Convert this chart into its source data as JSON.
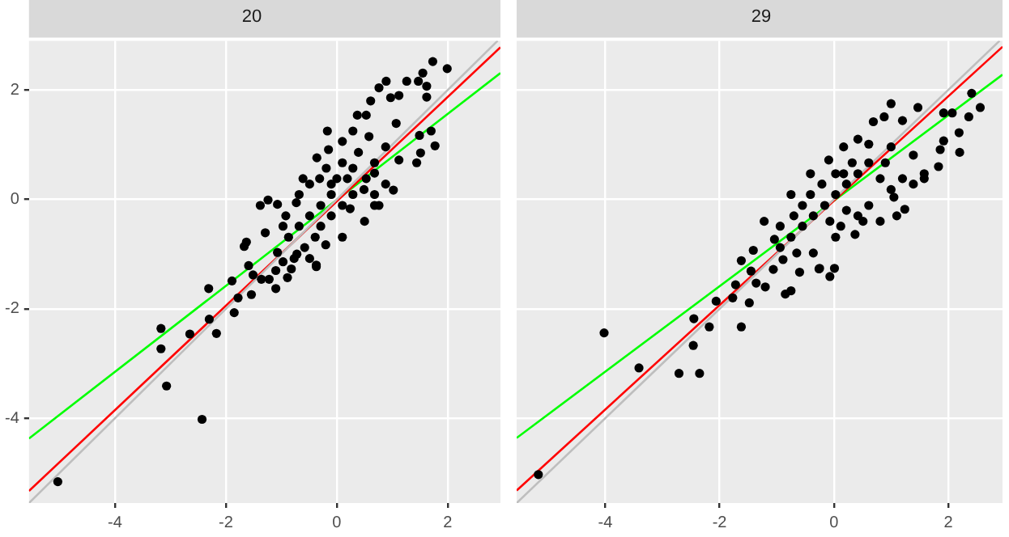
{
  "chart_data": [
    {
      "type": "scatter",
      "title": "20",
      "xlim": [
        -5.55,
        2.95
      ],
      "ylim": [
        -5.55,
        2.9
      ],
      "xticks": [
        -4,
        -2,
        0,
        2
      ],
      "yticks": [
        -4,
        -2,
        0,
        2
      ],
      "grid": true,
      "series": [
        {
          "color": "#000000",
          "marker": "circle",
          "x": [
            -5.03,
            -3.17,
            -3.17,
            -3.07,
            -2.65,
            -2.43,
            -2.31,
            -2.3,
            -2.17,
            -1.89,
            -1.85,
            -1.78,
            -1.59,
            -1.54,
            -1.51,
            -1.36,
            -1.22,
            -1.1,
            -1.1,
            -0.97,
            -0.89,
            -0.37,
            -0.72,
            -1.67,
            -1.63,
            -1.38,
            -1.24,
            -1.07,
            -1.29,
            -0.92,
            -0.73,
            -0.61,
            -0.37,
            -0.36,
            -0.31,
            -0.17,
            -0.15,
            0.29,
            0.37,
            0.53,
            0.61,
            0.76,
            0.89,
            1.12,
            0.97,
            1.26,
            1.55,
            1.62,
            1.62,
            1.73,
            1.99,
            1.47,
            1.49,
            1.7,
            1.77,
            1.44,
            1.51,
            1.02,
            0.76,
            0.5,
            0.24,
            0.1,
            -0.2,
            1.07,
            1.12,
            0.88,
            0.68,
            0.68,
            0.53,
            0.29,
            0.1,
            0.0,
            -0.1,
            -0.29,
            -0.49,
            -0.68,
            -0.87,
            -0.58,
            -0.77,
            -0.49,
            -0.29,
            -0.1,
            0.1,
            0.29,
            0.49,
            0.68,
            0.88,
            0.39,
            0.58,
            0.1,
            0.19,
            -0.19,
            -0.49,
            -0.68,
            -0.97,
            -1.07,
            -0.82,
            0.68,
            -0.1,
            -0.39
          ],
          "values": [
            -5.16,
            -2.36,
            -2.73,
            -3.41,
            -2.46,
            -4.02,
            -1.63,
            -2.19,
            -2.45,
            -1.49,
            -2.07,
            -1.8,
            -1.21,
            -1.74,
            -1.38,
            -1.46,
            -1.46,
            -1.3,
            -1.63,
            -1.14,
            -1.43,
            -1.23,
            -1.0,
            -0.86,
            -0.78,
            -0.11,
            -0.01,
            -0.09,
            -0.61,
            -0.3,
            -0.06,
            0.38,
            -1.2,
            0.76,
            0.38,
            1.25,
            0.91,
            1.25,
            1.54,
            1.54,
            1.8,
            2.04,
            2.16,
            1.9,
            1.86,
            2.16,
            2.31,
            2.07,
            1.87,
            2.52,
            2.39,
            2.16,
            1.17,
            1.25,
            0.98,
            0.67,
            0.85,
            0.17,
            -0.11,
            -0.4,
            -0.17,
            -0.69,
            -0.83,
            1.39,
            0.72,
            0.96,
            0.67,
            0.48,
            0.38,
            0.57,
            0.67,
            0.38,
            0.09,
            -0.11,
            -0.3,
            -0.49,
            -0.69,
            -0.88,
            -1.08,
            -1.08,
            -0.49,
            -0.3,
            -0.11,
            0.09,
            0.18,
            0.09,
            0.28,
            0.86,
            1.15,
            1.06,
            0.38,
            0.57,
            0.28,
            0.09,
            -0.49,
            -0.97,
            -1.27,
            -0.11,
            0.28,
            -0.69
          ]
        },
        {
          "type": "line",
          "color": "#bebebe",
          "x": [
            -5.55,
            2.9
          ],
          "values": [
            -5.55,
            2.9
          ]
        },
        {
          "type": "line",
          "color": "#ff0000",
          "x": [
            -5.55,
            2.95
          ],
          "values": [
            -5.33,
            2.78
          ]
        },
        {
          "type": "line",
          "color": "#00ff00",
          "x": [
            -5.55,
            2.95
          ],
          "values": [
            -4.37,
            2.31
          ]
        }
      ]
    },
    {
      "type": "scatter",
      "title": "29",
      "xlim": [
        -5.55,
        2.95
      ],
      "ylim": [
        -5.55,
        2.9
      ],
      "xticks": [
        -4,
        -2,
        0,
        2
      ],
      "yticks": [
        -4,
        -2,
        0,
        2
      ],
      "tick_labels": "x",
      "grid": true,
      "series": [
        {
          "color": "#000000",
          "marker": "circle",
          "x": [
            -5.17,
            -4.02,
            -3.41,
            -2.71,
            -2.35,
            -2.46,
            -2.45,
            -2.18,
            -2.06,
            -1.77,
            -1.72,
            -1.62,
            -1.48,
            -1.36,
            -1.2,
            -1.45,
            -1.06,
            -0.85,
            -0.75,
            -0.6,
            -0.25,
            -0.07,
            0.01,
            -1.62,
            -0.89,
            -1.41,
            -1.22,
            -1.04,
            -0.75,
            -0.41,
            -0.09,
            0.17,
            0.42,
            0.69,
            0.88,
            1.0,
            1.2,
            1.47,
            1.92,
            2.07,
            2.19,
            2.36,
            2.41,
            2.56,
            1.92,
            1.86,
            2.2,
            1.83,
            1.58,
            1.58,
            1.24,
            0.81,
            1.05,
            1.39,
            1.2,
            1.0,
            0.81,
            0.61,
            0.42,
            0.22,
            0.03,
            -0.16,
            -0.36,
            -0.55,
            -0.75,
            -0.94,
            -0.65,
            -0.36,
            -0.26,
            0.03,
            0.37,
            0.12,
            0.42,
            0.61,
            0.51,
            0.22,
            0.03,
            -0.21,
            -0.41,
            -0.55,
            -0.7,
            -0.94,
            -0.07,
            0.9,
            1.0,
            0.61,
            0.32,
            0.17,
            1.1,
            1.39
          ],
          "values": [
            -5.03,
            -2.44,
            -3.08,
            -3.18,
            -3.18,
            -2.67,
            -2.18,
            -2.33,
            -1.86,
            -1.8,
            -1.56,
            -2.33,
            -1.89,
            -1.53,
            -1.6,
            -1.31,
            -1.28,
            -1.73,
            -1.67,
            -1.33,
            -1.26,
            -1.41,
            -1.26,
            -1.12,
            -1.1,
            -0.93,
            -0.4,
            -0.73,
            0.09,
            0.47,
            0.72,
            0.96,
            1.1,
            1.42,
            1.51,
            1.75,
            1.44,
            1.68,
            1.58,
            1.58,
            1.22,
            1.51,
            1.94,
            1.68,
            1.07,
            0.91,
            0.86,
            0.6,
            0.47,
            0.38,
            -0.18,
            -0.4,
            0.04,
            0.81,
            0.38,
            0.18,
            0.38,
            0.67,
            0.47,
            0.28,
            0.09,
            -0.11,
            -0.3,
            -0.49,
            -0.69,
            -0.88,
            -0.98,
            -0.98,
            -1.27,
            -0.69,
            -0.64,
            -0.49,
            -0.3,
            -0.11,
            -0.4,
            -0.2,
            0.47,
            0.28,
            0.09,
            -0.11,
            -0.3,
            -0.49,
            -0.4,
            0.67,
            0.96,
            1.01,
            0.67,
            0.47,
            -0.3,
            0.28
          ]
        },
        {
          "type": "line",
          "color": "#bebebe",
          "x": [
            -5.55,
            2.9
          ],
          "values": [
            -5.55,
            2.9
          ]
        },
        {
          "type": "line",
          "color": "#ff0000",
          "x": [
            -5.55,
            2.95
          ],
          "values": [
            -5.32,
            2.79
          ]
        },
        {
          "type": "line",
          "color": "#00ff00",
          "x": [
            -5.55,
            2.95
          ],
          "values": [
            -4.36,
            2.28
          ]
        }
      ]
    }
  ]
}
